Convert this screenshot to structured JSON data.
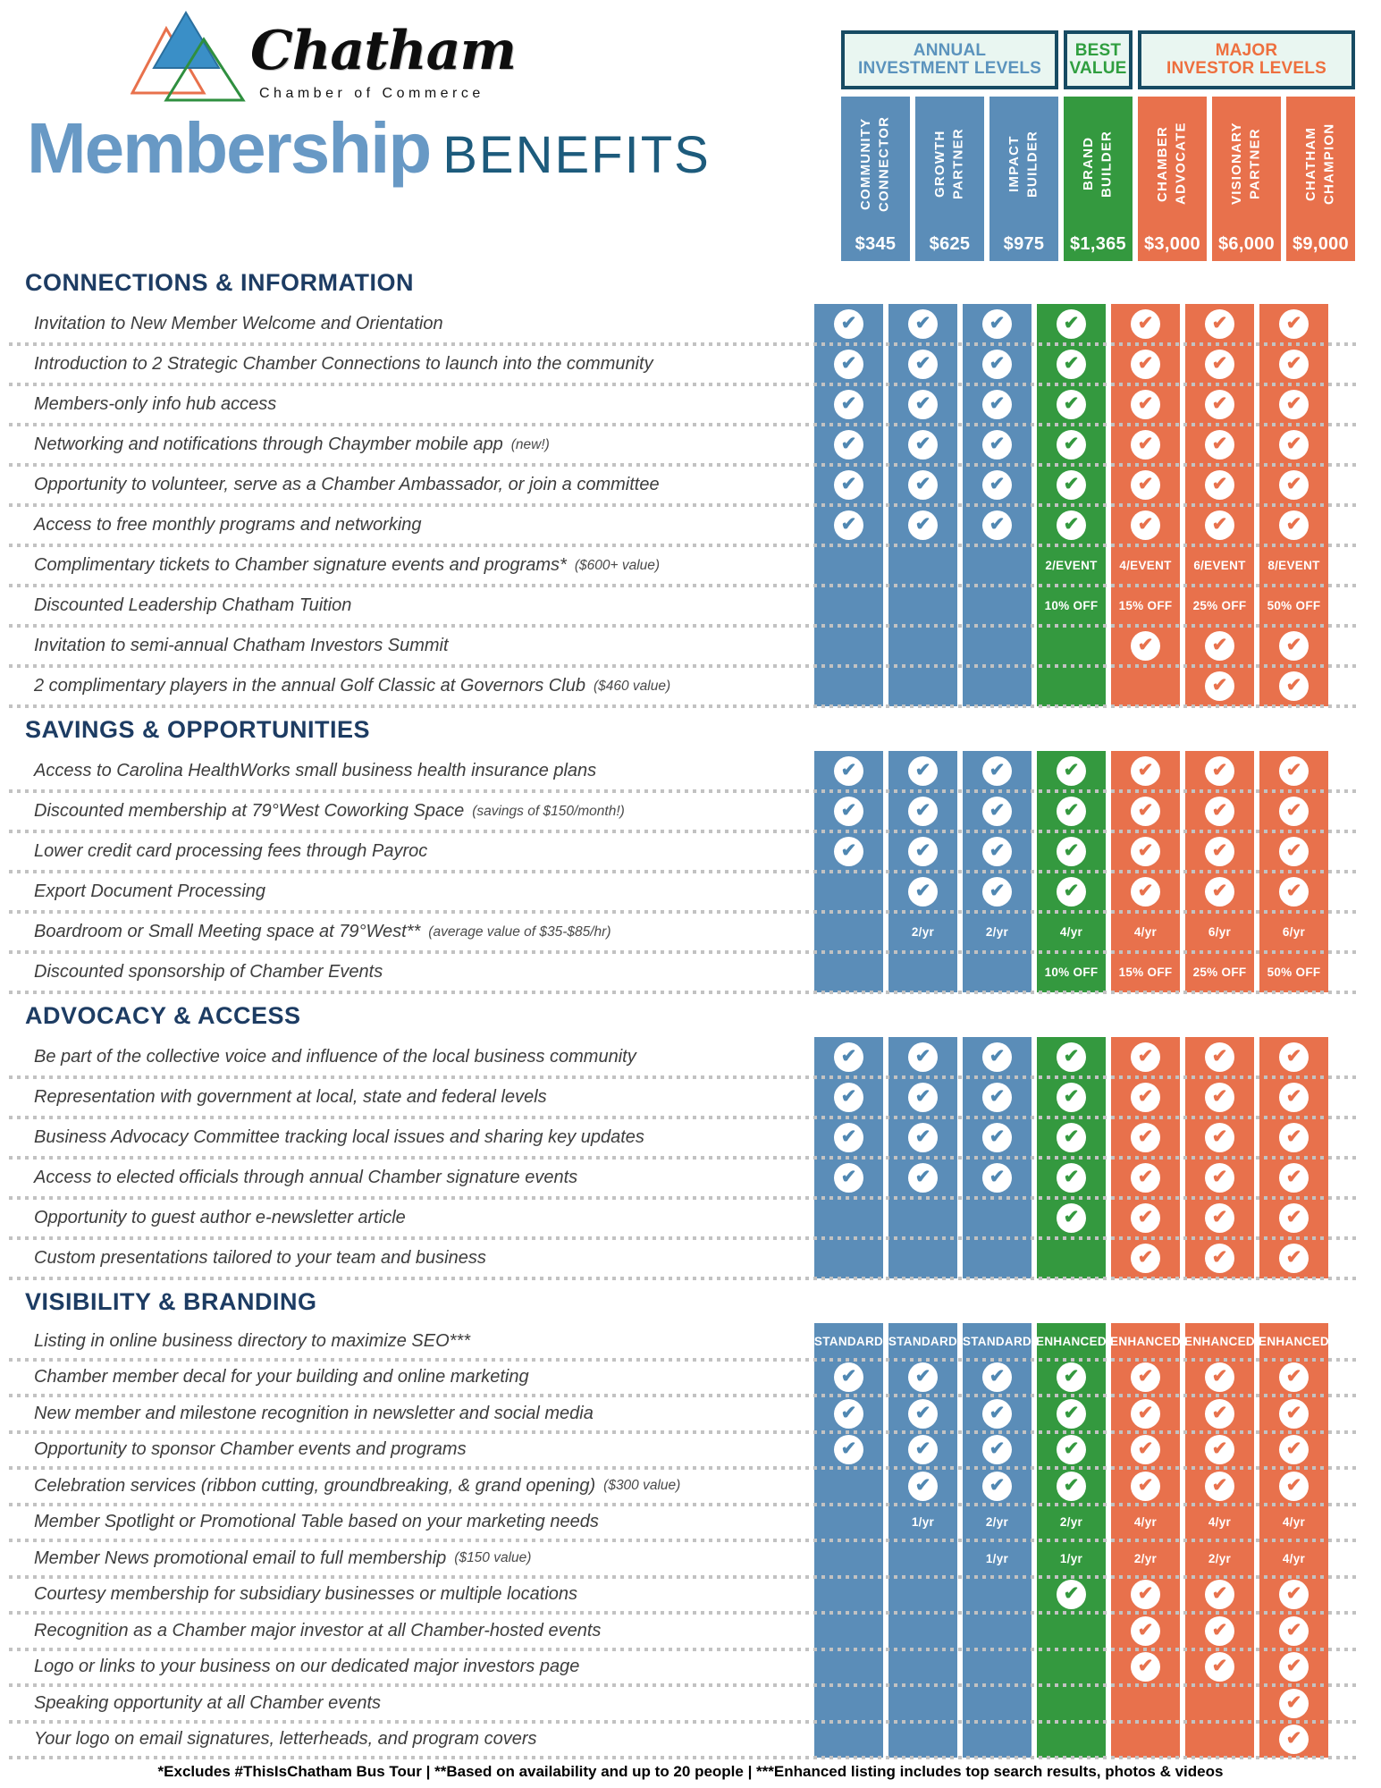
{
  "logo": {
    "brand": "Chatham",
    "sub": "Chamber of Commerce"
  },
  "title": {
    "word1": "Membership",
    "word2": "BENEFITS"
  },
  "colors": {
    "blue": "#5b8db8",
    "green": "#34993f",
    "orange": "#e8714c",
    "navy_border": "#174b63",
    "mint_header_bg": "#e9f6f1",
    "section_title": "#1d3c63",
    "title_blue": "#6899c5",
    "title_teal": "#1d5b7c"
  },
  "header": {
    "groups": [
      {
        "label": "ANNUAL INVESTMENT LEVELS",
        "lines": [
          "ANNUAL",
          "INVESTMENT LEVELS"
        ],
        "accent": "blue"
      },
      {
        "label": "BEST VALUE",
        "lines": [
          "BEST",
          "VALUE"
        ],
        "accent": "green"
      },
      {
        "label": "MAJOR INVESTOR LEVELS",
        "lines": [
          "MAJOR",
          "INVESTOR LEVELS"
        ],
        "accent": "orange"
      }
    ]
  },
  "tiers": [
    {
      "name": "COMMUNITY CONNECTOR",
      "lines": [
        "COMMUNITY",
        "CONNECTOR"
      ],
      "price": "$345",
      "color": "blue"
    },
    {
      "name": "GROWTH PARTNER",
      "lines": [
        "GROWTH",
        "PARTNER"
      ],
      "price": "$625",
      "color": "blue"
    },
    {
      "name": "IMPACT BUILDER",
      "lines": [
        "IMPACT",
        "BUILDER"
      ],
      "price": "$975",
      "color": "blue"
    },
    {
      "name": "BRAND BUILDER",
      "lines": [
        "BRAND",
        "BUILDER"
      ],
      "price": "$1,365",
      "color": "green"
    },
    {
      "name": "CHAMBER ADVOCATE",
      "lines": [
        "CHAMBER",
        "ADVOCATE"
      ],
      "price": "$3,000",
      "color": "orange"
    },
    {
      "name": "VISIONARY PARTNER",
      "lines": [
        "VISIONARY",
        "PARTNER"
      ],
      "price": "$6,000",
      "color": "orange"
    },
    {
      "name": "CHATHAM CHAMPION",
      "lines": [
        "CHATHAM",
        "CHAMPION"
      ],
      "price": "$9,000",
      "color": "orange"
    }
  ],
  "sections": [
    {
      "title": "CONNECTIONS & INFORMATION",
      "rows": [
        {
          "label": "Invitation to New Member Welcome and Orientation",
          "note": "",
          "cells": [
            "check",
            "check",
            "check",
            "check",
            "check",
            "check",
            "check"
          ]
        },
        {
          "label": "Introduction to 2 Strategic Chamber Connections to launch into the community",
          "note": "",
          "cells": [
            "check",
            "check",
            "check",
            "check",
            "check",
            "check",
            "check"
          ]
        },
        {
          "label": "Members-only info hub access",
          "note": "",
          "cells": [
            "check",
            "check",
            "check",
            "check",
            "check",
            "check",
            "check"
          ]
        },
        {
          "label": "Networking and notifications through Chaymber mobile app",
          "note": "(new!)",
          "cells": [
            "check",
            "check",
            "check",
            "check",
            "check",
            "check",
            "check"
          ]
        },
        {
          "label": "Opportunity to volunteer, serve as a Chamber Ambassador, or join a committee",
          "note": "",
          "cells": [
            "check",
            "check",
            "check",
            "check",
            "check",
            "check",
            "check"
          ]
        },
        {
          "label": "Access to free monthly programs and networking",
          "note": "",
          "cells": [
            "check",
            "check",
            "check",
            "check",
            "check",
            "check",
            "check"
          ]
        },
        {
          "label": "Complimentary tickets to Chamber signature events and programs*",
          "note": "($600+ value)",
          "cells": [
            "",
            "",
            "",
            "2/EVENT",
            "4/EVENT",
            "6/EVENT",
            "8/EVENT"
          ]
        },
        {
          "label": "Discounted Leadership Chatham Tuition",
          "note": "",
          "cells": [
            "",
            "",
            "",
            "10% OFF",
            "15% OFF",
            "25% OFF",
            "50% OFF"
          ]
        },
        {
          "label": "Invitation to semi-annual Chatham Investors Summit",
          "note": "",
          "cells": [
            "",
            "",
            "",
            "",
            "check",
            "check",
            "check"
          ]
        },
        {
          "label": "2 complimentary players in the annual Golf Classic at Governors Club",
          "note": "($460 value)",
          "cells": [
            "",
            "",
            "",
            "",
            "",
            "check",
            "check"
          ]
        }
      ]
    },
    {
      "title": "SAVINGS & OPPORTUNITIES",
      "rows": [
        {
          "label": "Access to Carolina HealthWorks small business health insurance plans",
          "note": "",
          "cells": [
            "check",
            "check",
            "check",
            "check",
            "check",
            "check",
            "check"
          ]
        },
        {
          "label": "Discounted membership at 79°West Coworking Space",
          "note": "(savings of $150/month!)",
          "cells": [
            "check",
            "check",
            "check",
            "check",
            "check",
            "check",
            "check"
          ]
        },
        {
          "label": "Lower credit card processing fees through Payroc",
          "note": "",
          "cells": [
            "check",
            "check",
            "check",
            "check",
            "check",
            "check",
            "check"
          ]
        },
        {
          "label": "Export Document Processing",
          "note": "",
          "cells": [
            "",
            "check",
            "check",
            "check",
            "check",
            "check",
            "check"
          ]
        },
        {
          "label": "Boardroom or Small Meeting space at 79°West**",
          "note": "(average value of $35-$85/hr)",
          "cells": [
            "",
            "2/yr",
            "2/yr",
            "4/yr",
            "4/yr",
            "6/yr",
            "6/yr"
          ]
        },
        {
          "label": "Discounted sponsorship of Chamber Events",
          "note": "",
          "cells": [
            "",
            "",
            "",
            "10% OFF",
            "15% OFF",
            "25% OFF",
            "50% OFF"
          ]
        }
      ]
    },
    {
      "title": "ADVOCACY & ACCESS",
      "rows": [
        {
          "label": "Be part of the collective voice and influence of the local business community",
          "note": "",
          "cells": [
            "check",
            "check",
            "check",
            "check",
            "check",
            "check",
            "check"
          ]
        },
        {
          "label": "Representation with government at local, state and federal levels",
          "note": "",
          "cells": [
            "check",
            "check",
            "check",
            "check",
            "check",
            "check",
            "check"
          ]
        },
        {
          "label": "Business Advocacy Committee tracking local issues and sharing key updates",
          "note": "",
          "cells": [
            "check",
            "check",
            "check",
            "check",
            "check",
            "check",
            "check"
          ]
        },
        {
          "label": "Access to elected officials through annual Chamber signature events",
          "note": "",
          "cells": [
            "check",
            "check",
            "check",
            "check",
            "check",
            "check",
            "check"
          ]
        },
        {
          "label": "Opportunity to guest author e-newsletter article",
          "note": "",
          "cells": [
            "",
            "",
            "",
            "check",
            "check",
            "check",
            "check"
          ]
        },
        {
          "label": "Custom presentations tailored to your team and business",
          "note": "",
          "cells": [
            "",
            "",
            "",
            "",
            "check",
            "check",
            "check"
          ]
        }
      ]
    },
    {
      "title": "VISIBILITY & BRANDING",
      "rows": [
        {
          "label": "Listing in online business directory to maximize SEO***",
          "note": "",
          "cells": [
            "STANDARD",
            "STANDARD",
            "STANDARD",
            "ENHANCED",
            "ENHANCED",
            "ENHANCED",
            "ENHANCED"
          ]
        },
        {
          "label": "Chamber member decal for your building and online marketing",
          "note": "",
          "cells": [
            "check",
            "check",
            "check",
            "check",
            "check",
            "check",
            "check"
          ]
        },
        {
          "label": "New member and milestone recognition in newsletter and social media",
          "note": "",
          "cells": [
            "check",
            "check",
            "check",
            "check",
            "check",
            "check",
            "check"
          ]
        },
        {
          "label": "Opportunity to sponsor Chamber events and programs",
          "note": "",
          "cells": [
            "check",
            "check",
            "check",
            "check",
            "check",
            "check",
            "check"
          ]
        },
        {
          "label": "Celebration services (ribbon cutting, groundbreaking, & grand opening)",
          "note": "($300 value)",
          "cells": [
            "",
            "check",
            "check",
            "check",
            "check",
            "check",
            "check"
          ]
        },
        {
          "label": "Member Spotlight or Promotional Table based on your marketing needs",
          "note": "",
          "cells": [
            "",
            "1/yr",
            "2/yr",
            "2/yr",
            "4/yr",
            "4/yr",
            "4/yr"
          ]
        },
        {
          "label": "Member News promotional email to full membership",
          "note": "($150 value)",
          "cells": [
            "",
            "",
            "1/yr",
            "1/yr",
            "2/yr",
            "2/yr",
            "4/yr"
          ]
        },
        {
          "label": "Courtesy membership for subsidiary businesses or multiple locations",
          "note": "",
          "cells": [
            "",
            "",
            "",
            "check",
            "check",
            "check",
            "check"
          ]
        },
        {
          "label": "Recognition as a Chamber major investor at all Chamber-hosted events",
          "note": "",
          "cells": [
            "",
            "",
            "",
            "",
            "check",
            "check",
            "check"
          ]
        },
        {
          "label": "Logo or links to your business on our dedicated major investors page",
          "note": "",
          "cells": [
            "",
            "",
            "",
            "",
            "check",
            "check",
            "check"
          ]
        },
        {
          "label": "Speaking opportunity at all Chamber events",
          "note": "",
          "cells": [
            "",
            "",
            "",
            "",
            "",
            "",
            "check"
          ]
        },
        {
          "label": "Your logo on email signatures, letterheads, and program covers",
          "note": "",
          "cells": [
            "",
            "",
            "",
            "",
            "",
            "",
            "check"
          ]
        }
      ]
    }
  ],
  "footnote": "*Excludes #ThisIsChatham Bus Tour | **Based on availability and up to 20 people | ***Enhanced listing includes top search results, photos & videos"
}
